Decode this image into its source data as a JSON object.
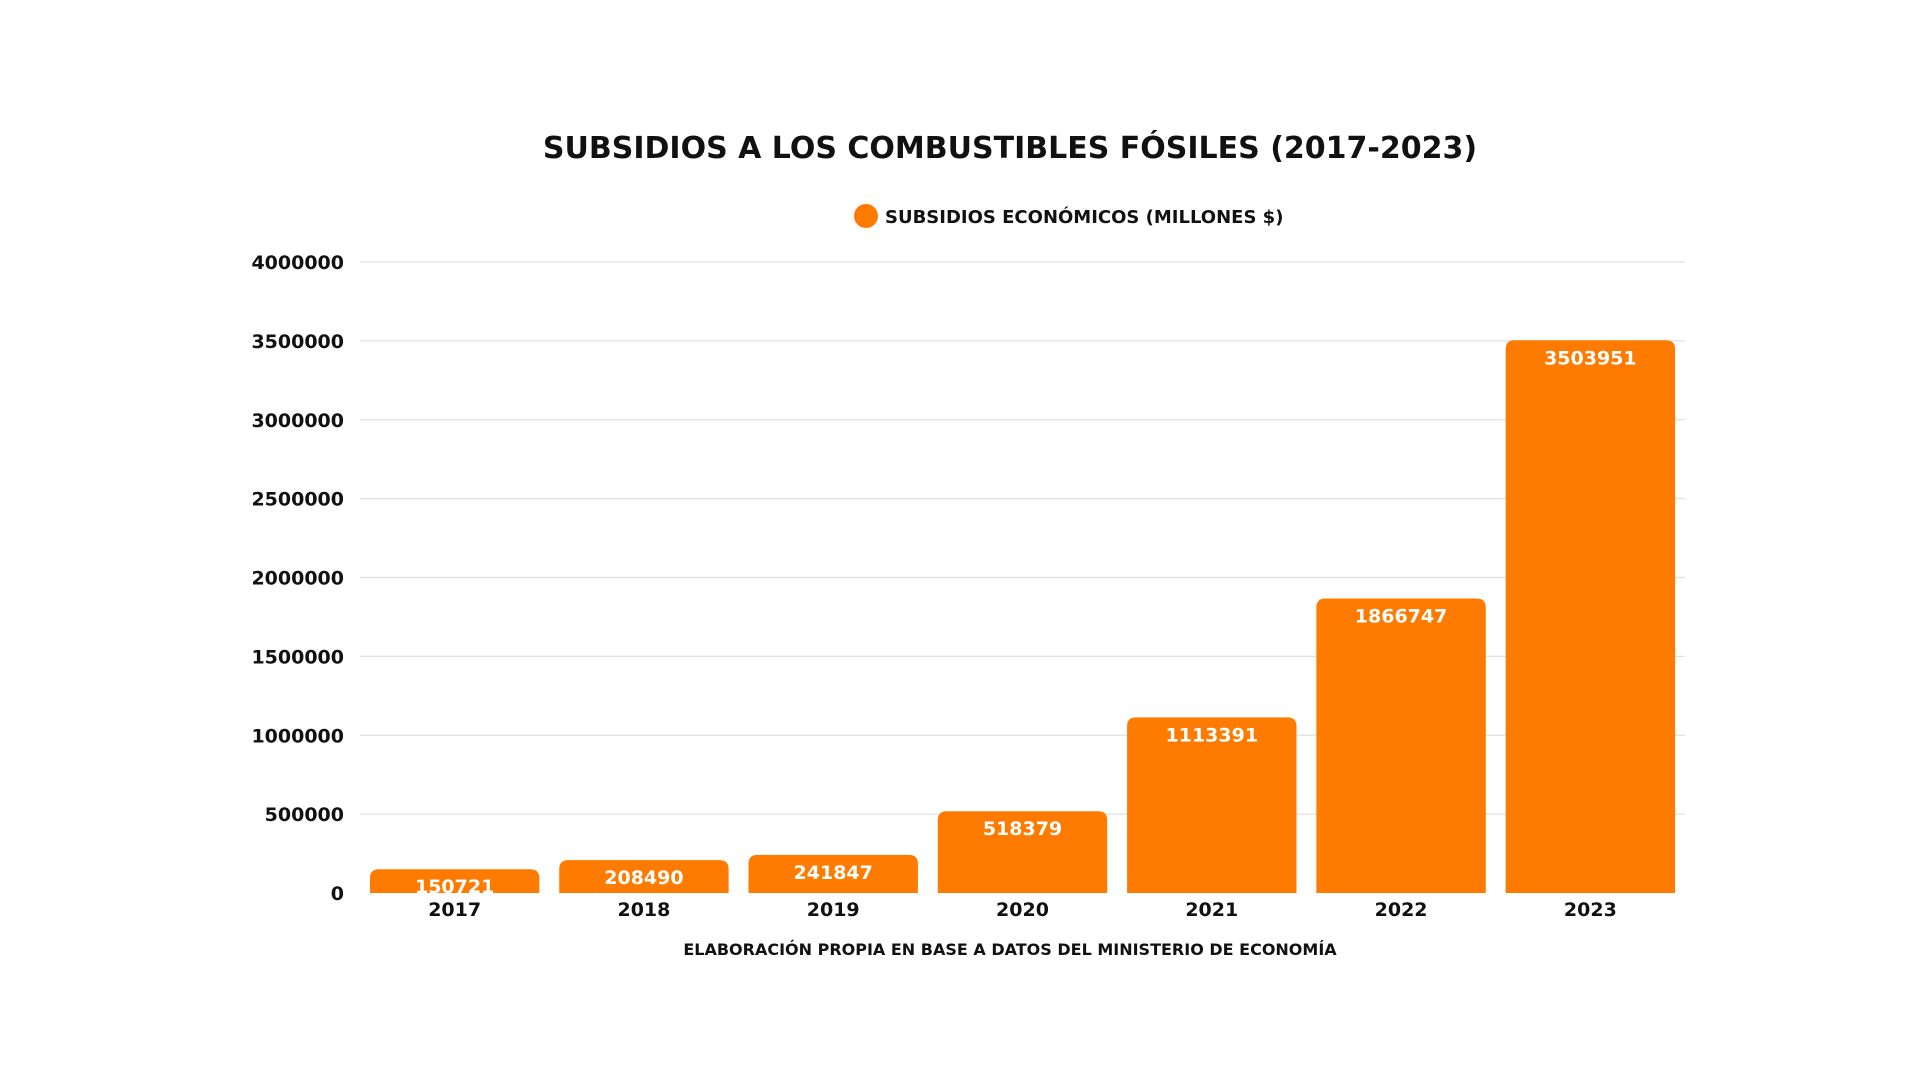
{
  "chart_data": {
    "type": "bar",
    "title": "SUBSIDIOS A LOS COMBUSTIBLES FÓSILES (2017-2023)",
    "series": [
      {
        "name": "SUBSIDIOS ECONÓMICOS (MILLONES $)",
        "color": "#FF7B00",
        "values": [
          150721,
          208490,
          241847,
          518379,
          1113391,
          1866747,
          3503951
        ]
      }
    ],
    "categories": [
      "2017",
      "2018",
      "2019",
      "2020",
      "2021",
      "2022",
      "2023"
    ],
    "ylim": [
      0,
      4000000
    ],
    "yticks": [
      0,
      500000,
      1000000,
      1500000,
      2000000,
      2500000,
      3000000,
      3500000,
      4000000
    ],
    "data_labels": true,
    "grid": true,
    "legend_position": "top-center",
    "source_note": "ELABORACIÓN PROPIA EN BASE A DATOS DEL MINISTERIO DE ECONOMÍA"
  }
}
